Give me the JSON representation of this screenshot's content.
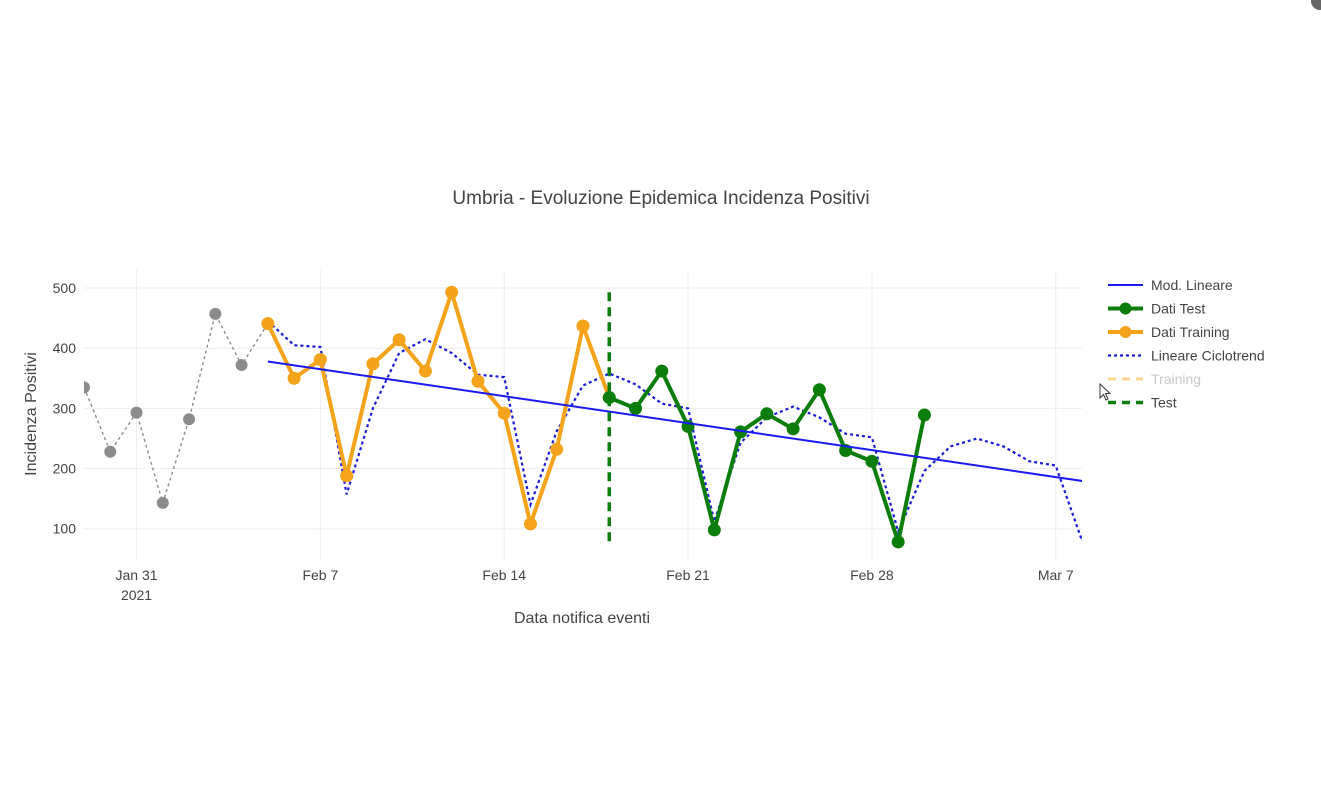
{
  "chart_data": {
    "type": "line",
    "title": "Umbria - Evoluzione Epidemica Incidenza Positivi",
    "xlabel": "Data notifica eventi",
    "ylabel": "Incidenza Positivi",
    "x_range": [
      "2021-01-29",
      "2021-03-08"
    ],
    "ylim": [
      48,
      530
    ],
    "yticks": [
      100,
      200,
      300,
      400,
      500
    ],
    "xticks": [
      {
        "date": "2021-01-31",
        "label": "Jan 31",
        "sublabel": "2021"
      },
      {
        "date": "2021-02-07",
        "label": "Feb 7"
      },
      {
        "date": "2021-02-14",
        "label": "Feb 14"
      },
      {
        "date": "2021-02-21",
        "label": "Feb 21"
      },
      {
        "date": "2021-02-28",
        "label": "Feb 28"
      },
      {
        "date": "2021-03-07",
        "label": "Mar 7"
      }
    ],
    "grid": true,
    "legend_position": "right",
    "series": [
      {
        "name": "Training",
        "legend": true,
        "faded": true,
        "style": "dotted-gray",
        "color": "#8c8c8c",
        "points": [
          [
            "2021-01-29",
            335
          ],
          [
            "2021-01-30",
            228
          ],
          [
            "2021-01-31",
            293
          ],
          [
            "2021-02-01",
            143
          ],
          [
            "2021-02-02",
            282
          ],
          [
            "2021-02-03",
            457
          ],
          [
            "2021-02-04",
            372
          ],
          [
            "2021-02-05",
            441
          ]
        ]
      },
      {
        "name": "Dati Training",
        "legend": true,
        "style": "line-markers",
        "color": "#f5a31a",
        "points": [
          [
            "2021-02-05",
            441
          ],
          [
            "2021-02-06",
            350
          ],
          [
            "2021-02-07",
            381
          ],
          [
            "2021-02-08",
            188
          ],
          [
            "2021-02-09",
            374
          ],
          [
            "2021-02-10",
            414
          ],
          [
            "2021-02-11",
            362
          ],
          [
            "2021-02-12",
            493
          ],
          [
            "2021-02-13",
            345
          ],
          [
            "2021-02-14",
            292
          ],
          [
            "2021-02-15",
            108
          ],
          [
            "2021-02-16",
            232
          ],
          [
            "2021-02-17",
            437
          ],
          [
            "2021-02-18",
            318
          ]
        ]
      },
      {
        "name": "Dati Test",
        "legend": true,
        "style": "line-markers",
        "color": "#0b7d0b",
        "points": [
          [
            "2021-02-18",
            318
          ],
          [
            "2021-02-19",
            300
          ],
          [
            "2021-02-20",
            362
          ],
          [
            "2021-02-21",
            270
          ],
          [
            "2021-02-22",
            98
          ],
          [
            "2021-02-23",
            261
          ],
          [
            "2021-02-24",
            291
          ],
          [
            "2021-02-25",
            266
          ],
          [
            "2021-02-26",
            331
          ],
          [
            "2021-02-27",
            230
          ],
          [
            "2021-02-28",
            212
          ],
          [
            "2021-03-01",
            78
          ],
          [
            "2021-03-02",
            289
          ]
        ]
      },
      {
        "name": "Lineare Ciclotrend",
        "legend": true,
        "style": "dotted",
        "color": "#1a1adb",
        "points": [
          [
            "2021-02-05",
            445
          ],
          [
            "2021-02-06",
            405
          ],
          [
            "2021-02-07",
            402
          ],
          [
            "2021-02-08",
            157
          ],
          [
            "2021-02-09",
            300
          ],
          [
            "2021-02-10",
            392
          ],
          [
            "2021-02-11",
            415
          ],
          [
            "2021-02-12",
            392
          ],
          [
            "2021-02-13",
            356
          ],
          [
            "2021-02-14",
            352
          ],
          [
            "2021-02-15",
            140
          ],
          [
            "2021-02-16",
            262
          ],
          [
            "2021-02-17",
            338
          ],
          [
            "2021-02-18",
            358
          ],
          [
            "2021-02-19",
            340
          ],
          [
            "2021-02-20",
            308
          ],
          [
            "2021-02-21",
            300
          ],
          [
            "2021-02-22",
            112
          ],
          [
            "2021-02-23",
            243
          ],
          [
            "2021-02-24",
            285
          ],
          [
            "2021-02-25",
            303
          ],
          [
            "2021-02-26",
            285
          ],
          [
            "2021-02-27",
            258
          ],
          [
            "2021-02-28",
            252
          ],
          [
            "2021-03-01",
            95
          ],
          [
            "2021-03-02",
            196
          ],
          [
            "2021-03-03",
            237
          ],
          [
            "2021-03-04",
            250
          ],
          [
            "2021-03-05",
            237
          ],
          [
            "2021-03-06",
            212
          ],
          [
            "2021-03-07",
            205
          ],
          [
            "2021-03-08",
            80
          ],
          [
            "2021-03-09",
            150
          ]
        ]
      },
      {
        "name": "Mod. Lineare",
        "legend": true,
        "style": "solid",
        "color": "#1a1af0",
        "points": [
          [
            "2021-02-05",
            378
          ],
          [
            "2021-03-09",
            173
          ]
        ]
      }
    ],
    "vertical_marker": {
      "name": "Test",
      "date": "2021-02-18",
      "y_range": [
        78,
        493
      ],
      "color": "#0b7d0b",
      "style": "dashed"
    },
    "legend": [
      {
        "label": "Mod. Lineare",
        "style": "solid",
        "color": "#1a1af0"
      },
      {
        "label": "Dati Test",
        "style": "line-markers",
        "color": "#0b7d0b"
      },
      {
        "label": "Dati Training",
        "style": "line-markers",
        "color": "#f5a31a"
      },
      {
        "label": "Lineare Ciclotrend",
        "style": "dotted",
        "color": "#1a1adb"
      },
      {
        "label": "Training",
        "style": "dashed-faded",
        "color": "#fcd58a"
      },
      {
        "label": "Test",
        "style": "dashed",
        "color": "#0b7d0b"
      }
    ]
  }
}
